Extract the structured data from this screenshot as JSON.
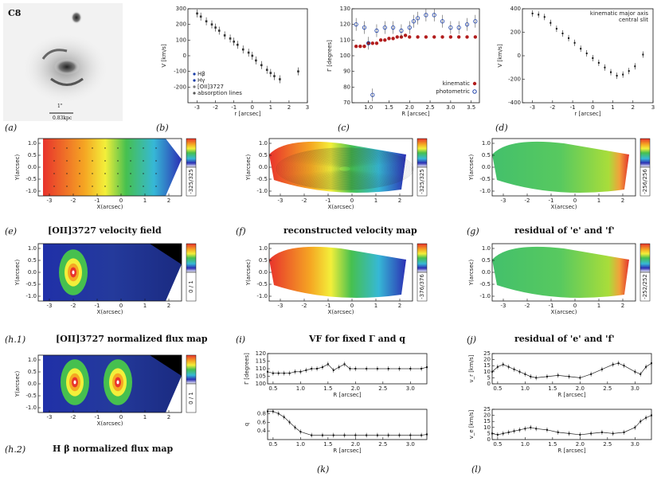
{
  "panel_labels": {
    "a": "(a)",
    "b": "(b)",
    "c": "(c)",
    "d": "(d)",
    "e": "(e)",
    "f": "(f)",
    "g": "(g)",
    "h1": "(h.1)",
    "i": "(i)",
    "j": "(j)",
    "h2": "(h.2)",
    "k": "(k)",
    "l": "(l)"
  },
  "image_a": {
    "name": "C8",
    "scale": "0.83kpc",
    "scale_top": "1\""
  },
  "captions": {
    "e": "[OII]3727 velocity field",
    "f": "reconstructed velocity map",
    "g": "residual of 'e' and 'f'",
    "h1": "[OII]3727 normalized flux map",
    "i": "VF for fixed Γ and q",
    "j": "residual of 'e' and 'f'",
    "h2": "H β normalized flux map"
  },
  "axes": {
    "xarcsec": "X(arcsec)",
    "yarcsec": "Y(arcsec)",
    "r_arcsec": "r [arcsec]",
    "R_arcsec": "R [arcsec]",
    "v_kms": "V [km/s]",
    "gamma_deg": "Γ [degrees]",
    "q": "q",
    "vr_kms": "v_r [km/s]",
    "ve_kms": "v_e [km/s]"
  },
  "colorbars": {
    "e": "-325/325",
    "f": "-325/325",
    "g": "-256/256",
    "h1": "0 / 1",
    "i": "-376/376",
    "j": "-252/252",
    "h2": "0 / 1"
  },
  "chart_data": [
    {
      "id": "b",
      "type": "scatter",
      "xlabel": "r [arcsec]",
      "ylabel": "V [km/s]",
      "xlim": [
        -3.5,
        3
      ],
      "ylim": [
        -300,
        300
      ],
      "xticks": [
        "-3",
        "-2",
        "-1",
        "0",
        "1",
        "2",
        "3"
      ],
      "yticks": [
        "-200",
        "-100",
        "0",
        "100",
        "200",
        "300"
      ],
      "legend": [
        "Hβ",
        "Hγ",
        "[OII]3727",
        "absorption lines"
      ],
      "series": [
        {
          "name": "Hβ",
          "x": [
            -3,
            -2.8,
            -2.5,
            -2.2,
            -2,
            -1.8,
            -1.5,
            -1.2,
            -1,
            -0.8,
            -0.5,
            -0.2,
            0,
            0.2,
            0.5,
            0.8,
            1,
            1.2,
            1.5,
            2.5
          ],
          "y": [
            270,
            250,
            220,
            200,
            180,
            160,
            130,
            110,
            90,
            70,
            40,
            20,
            0,
            -30,
            -60,
            -90,
            -110,
            -130,
            -150,
            -100
          ]
        }
      ]
    },
    {
      "id": "c",
      "type": "scatter",
      "xlabel": "R [arcsec]",
      "ylabel": "Γ [degrees]",
      "xlim": [
        0.6,
        3.7
      ],
      "ylim": [
        70,
        130
      ],
      "xticks": [
        "1.0",
        "1.5",
        "2.0",
        "2.5",
        "3.0",
        "3.5"
      ],
      "yticks": [
        "70",
        "80",
        "90",
        "100",
        "110",
        "120",
        "130"
      ],
      "legend": [
        "kinematic",
        "photometric"
      ],
      "series": [
        {
          "name": "kinematic",
          "x": [
            0.7,
            0.8,
            0.9,
            1.0,
            1.1,
            1.2,
            1.3,
            1.4,
            1.5,
            1.6,
            1.7,
            1.8,
            1.9,
            2.0,
            2.2,
            2.4,
            2.6,
            2.8,
            3.0,
            3.2,
            3.4,
            3.6
          ],
          "y": [
            106,
            106,
            106,
            108,
            108,
            108,
            110,
            110,
            111,
            111,
            112,
            112,
            113,
            112,
            112,
            112,
            112,
            112,
            112,
            112,
            112,
            112
          ]
        },
        {
          "name": "photometric",
          "x": [
            0.7,
            0.9,
            1.0,
            1.1,
            1.2,
            1.4,
            1.6,
            1.8,
            2.0,
            2.1,
            2.2,
            2.4,
            2.6,
            2.8,
            3.0,
            3.2,
            3.4,
            3.6
          ],
          "y": [
            120,
            118,
            108,
            75,
            116,
            118,
            118,
            116,
            118,
            122,
            124,
            126,
            126,
            122,
            118,
            118,
            120,
            122
          ]
        }
      ]
    },
    {
      "id": "d",
      "type": "scatter",
      "xlabel": "r [arcsec]",
      "ylabel": "V [km/s]",
      "xlim": [
        -3.5,
        3
      ],
      "ylim": [
        -400,
        400
      ],
      "xticks": [
        "-3",
        "-2",
        "-1",
        "0",
        "1",
        "2",
        "3"
      ],
      "yticks": [
        "-400",
        "-200",
        "0",
        "200",
        "400"
      ],
      "legend": [
        "kinematic major axis",
        "central slit"
      ],
      "series": [
        {
          "name": "kinematic major axis",
          "x": [
            -3,
            -2.7,
            -2.4,
            -2.1,
            -1.8,
            -1.5,
            -1.2,
            -0.9,
            -0.6,
            -0.3,
            0,
            0.3,
            0.6,
            0.9,
            1.2,
            1.5,
            1.8,
            2.1,
            2.5
          ],
          "y": [
            360,
            350,
            330,
            280,
            230,
            190,
            150,
            110,
            60,
            20,
            -20,
            -60,
            -100,
            -140,
            -170,
            -160,
            -130,
            -90,
            10
          ]
        }
      ]
    },
    {
      "id": "k_top",
      "type": "line",
      "xlabel": "R [arcsec]",
      "ylabel": "Γ [degrees]",
      "xlim": [
        0.4,
        3.3
      ],
      "ylim": [
        100,
        120
      ],
      "xticks": [
        "0.5",
        "1.0",
        "1.5",
        "2.0",
        "2.5",
        "3.0"
      ],
      "yticks": [
        "100",
        "105",
        "110",
        "115",
        "120"
      ],
      "x": [
        0.4,
        0.5,
        0.6,
        0.7,
        0.8,
        0.9,
        1.0,
        1.1,
        1.2,
        1.3,
        1.4,
        1.5,
        1.6,
        1.7,
        1.8,
        1.9,
        2.0,
        2.2,
        2.4,
        2.6,
        2.8,
        3.0,
        3.2,
        3.3
      ],
      "y": [
        108,
        107,
        107,
        107,
        107,
        108,
        108,
        109,
        110,
        110,
        111,
        113,
        109,
        111,
        113,
        110,
        110,
        110,
        110,
        110,
        110,
        110,
        110,
        111
      ]
    },
    {
      "id": "k_bottom",
      "type": "line",
      "xlabel": "R [arcsec]",
      "ylabel": "q",
      "xlim": [
        0.4,
        3.3
      ],
      "ylim": [
        0.2,
        0.9
      ],
      "xticks": [
        "0.5",
        "1.0",
        "1.5",
        "2.0",
        "2.5",
        "3.0"
      ],
      "yticks": [
        "0.4",
        "0.6",
        "0.8"
      ],
      "x": [
        0.4,
        0.5,
        0.6,
        0.7,
        0.8,
        0.9,
        1.0,
        1.2,
        1.4,
        1.6,
        1.8,
        2.0,
        2.2,
        2.4,
        2.6,
        2.8,
        3.0,
        3.2,
        3.3
      ],
      "y": [
        0.85,
        0.85,
        0.8,
        0.72,
        0.6,
        0.48,
        0.38,
        0.3,
        0.3,
        0.3,
        0.3,
        0.3,
        0.3,
        0.3,
        0.3,
        0.3,
        0.3,
        0.3,
        0.32
      ]
    },
    {
      "id": "l_top",
      "type": "line",
      "xlabel": "R [arcsec]",
      "ylabel": "v_r [km/s]",
      "xlim": [
        0.4,
        3.3
      ],
      "ylim": [
        0,
        25
      ],
      "xticks": [
        "0.5",
        "1.0",
        "1.5",
        "2.0",
        "2.5",
        "3.0"
      ],
      "yticks": [
        "0",
        "5",
        "10",
        "15",
        "20",
        "25"
      ],
      "x": [
        0.4,
        0.5,
        0.6,
        0.7,
        0.8,
        0.9,
        1.0,
        1.1,
        1.2,
        1.4,
        1.6,
        1.8,
        2.0,
        2.2,
        2.4,
        2.6,
        2.7,
        2.8,
        3.0,
        3.1,
        3.2,
        3.3
      ],
      "y": [
        10,
        14,
        16,
        14,
        12,
        10,
        8,
        6,
        5,
        6,
        7,
        6,
        5,
        8,
        12,
        16,
        17,
        15,
        10,
        8,
        14,
        17
      ]
    },
    {
      "id": "l_bottom",
      "type": "line",
      "xlabel": "R [arcsec]",
      "ylabel": "v_e [km/s]",
      "xlim": [
        0.4,
        3.3
      ],
      "ylim": [
        0,
        25
      ],
      "xticks": [
        "0.5",
        "1.0",
        "1.5",
        "2.0",
        "2.5",
        "3.0"
      ],
      "yticks": [
        "0",
        "5",
        "10",
        "15",
        "20",
        "25"
      ],
      "x": [
        0.4,
        0.5,
        0.6,
        0.7,
        0.8,
        0.9,
        1.0,
        1.1,
        1.2,
        1.4,
        1.6,
        1.8,
        2.0,
        2.2,
        2.4,
        2.6,
        2.8,
        3.0,
        3.1,
        3.2,
        3.3
      ],
      "y": [
        5,
        4,
        5,
        6,
        7,
        8,
        9,
        10,
        9,
        8,
        6,
        5,
        4,
        5,
        6,
        5,
        6,
        10,
        15,
        18,
        20
      ]
    }
  ]
}
